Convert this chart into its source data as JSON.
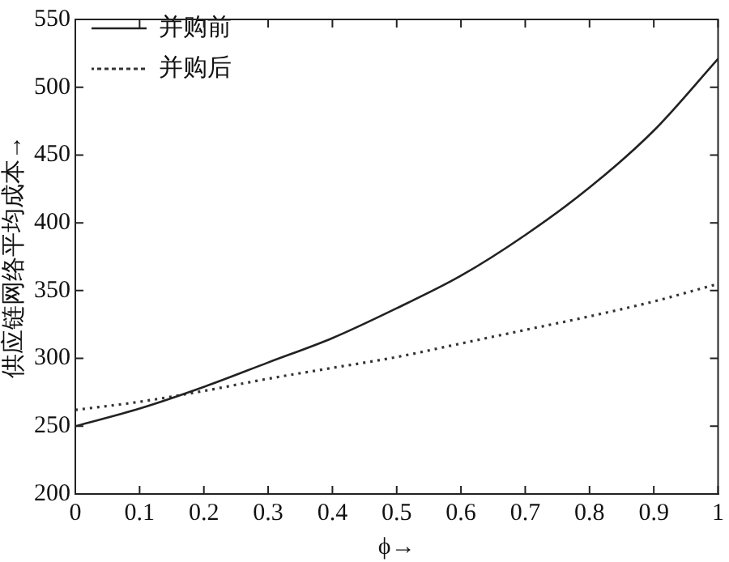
{
  "chart_data": {
    "type": "line",
    "xlabel": "ϕ→",
    "ylabel": "供应链网络平均成本→",
    "x": [
      0,
      0.1,
      0.2,
      0.3,
      0.4,
      0.5,
      0.6,
      0.7,
      0.8,
      0.9,
      1
    ],
    "series": [
      {
        "name": "并购前",
        "color": "#222222",
        "line_style": "solid",
        "values": [
          250,
          263,
          279,
          297,
          315,
          337,
          361,
          391,
          426,
          468,
          521
        ]
      },
      {
        "name": "并购后",
        "color": "#333333",
        "line_style": "dotted",
        "values": [
          262,
          268,
          276,
          285,
          293,
          301,
          311,
          321,
          331,
          342,
          355
        ]
      }
    ],
    "xlim": [
      0,
      1
    ],
    "xticks": [
      0,
      0.1,
      0.2,
      0.3,
      0.4,
      0.5,
      0.6,
      0.7,
      0.8,
      0.9,
      1
    ],
    "ylim": [
      200,
      550
    ],
    "yticks": [
      200,
      250,
      300,
      350,
      400,
      450,
      500,
      550
    ],
    "grid": false,
    "legend": "top left",
    "marker": "none"
  }
}
